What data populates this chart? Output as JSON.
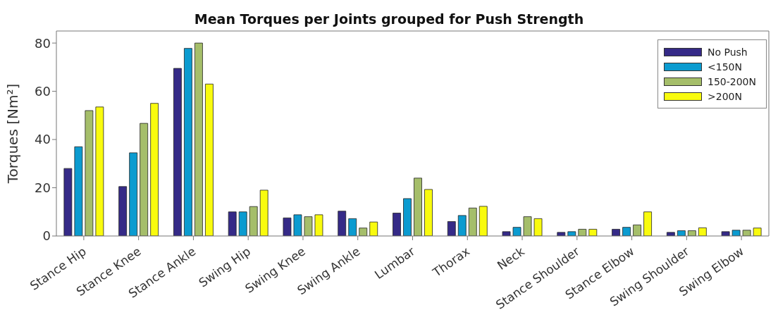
{
  "chart_data": {
    "type": "bar",
    "title": "Mean Torques per Joints grouped for Push Strength",
    "ylabel": "Torques [Nm²]",
    "categories": [
      "Stance Hip",
      "Stance Knee",
      "Stance Ankle",
      "Swing Hip",
      "Swing Knee",
      "Swing Ankle",
      "Lumbar",
      "Thorax",
      "Neck",
      "Stance Shoulder",
      "Stance Elbow",
      "Swing Shoulder",
      "Swing Elbow"
    ],
    "series": [
      {
        "name": "No Push",
        "color": "#352a87",
        "values": [
          28,
          20.5,
          69.5,
          10,
          7.5,
          10.3,
          9.5,
          6,
          1.8,
          1.5,
          2.8,
          1.5,
          1.8
        ]
      },
      {
        "name": "<150N",
        "color": "#0b9bd0",
        "values": [
          37,
          34.5,
          77.8,
          10,
          8.8,
          7.2,
          15.5,
          8.5,
          3.6,
          1.8,
          3.6,
          2.2,
          2.4
        ]
      },
      {
        "name": "150-200N",
        "color": "#a5be6a",
        "values": [
          52,
          46.7,
          80,
          12.2,
          8,
          3.3,
          24,
          11.6,
          8,
          2.8,
          4.6,
          2.2,
          2.4
        ]
      },
      {
        "name": ">200N",
        "color": "#f9fb0e",
        "values": [
          53.5,
          55,
          63,
          19,
          8.8,
          5.8,
          19.3,
          12.3,
          7.2,
          2.8,
          10,
          3.4,
          3.3
        ]
      }
    ],
    "ylim": [
      0,
      85
    ],
    "yticks": [
      0,
      20,
      40,
      60,
      80
    ],
    "grid": false,
    "legend": "top right"
  }
}
